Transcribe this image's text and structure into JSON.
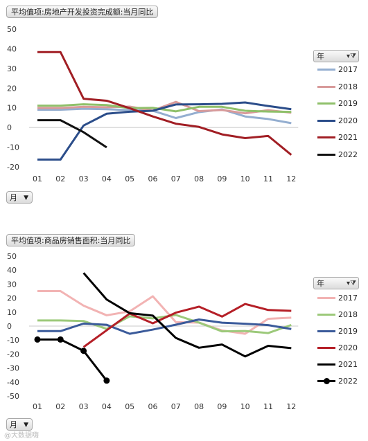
{
  "chart_data": [
    {
      "type": "line",
      "title": "平均值项:房地产开发投资完成额:当月同比",
      "row_field": "月",
      "legend_title": "年",
      "categories": [
        "01",
        "02",
        "03",
        "04",
        "05",
        "06",
        "07",
        "08",
        "09",
        "10",
        "11",
        "12"
      ],
      "yticks": [
        "50",
        "40",
        "30",
        "20",
        "10",
        "0",
        "-10",
        "-20"
      ],
      "ylim": [
        -20,
        50
      ],
      "grid": false,
      "legend_position": "right",
      "series": [
        {
          "name": "2017",
          "color": "#94aed0",
          "marker": false,
          "values": [
            9,
            9,
            9.5,
            9.3,
            8.8,
            8.5,
            4.8,
            7.8,
            9.2,
            5.6,
            4.3,
            2.2
          ]
        },
        {
          "name": "2018",
          "color": "#d89a9a",
          "marker": false,
          "values": [
            9.9,
            9.9,
            10.5,
            10.3,
            10.6,
            8.6,
            13,
            8.3,
            8.9,
            7.2,
            8.8,
            7.5
          ]
        },
        {
          "name": "2019",
          "color": "#8fc06a",
          "marker": false,
          "values": [
            11.1,
            11.1,
            11.8,
            11.4,
            9.8,
            10,
            8.2,
            10.5,
            10.5,
            8.5,
            8.1,
            7.9
          ]
        },
        {
          "name": "2020",
          "color": "#2b4d8a",
          "marker": false,
          "values": [
            -16.3,
            -16.3,
            1,
            7,
            8,
            8.5,
            11.7,
            11.8,
            12,
            12.7,
            10.9,
            9.3
          ]
        },
        {
          "name": "2021",
          "color": "#a11e24",
          "marker": false,
          "values": [
            38.3,
            38.3,
            14.6,
            13.6,
            9.8,
            5.6,
            1.9,
            0.3,
            -3.5,
            -5.4,
            -4.3,
            -13.9
          ]
        },
        {
          "name": "2022",
          "color": "#111111",
          "marker": false,
          "values": [
            3.7,
            3.7,
            -2.4,
            -10.1,
            null,
            null,
            null,
            null,
            null,
            null,
            null,
            null
          ]
        }
      ]
    },
    {
      "type": "line",
      "title": "平均值项:商品房销售面积:当月同比",
      "row_field": "月",
      "legend_title": "年",
      "categories": [
        "01",
        "02",
        "03",
        "04",
        "05",
        "06",
        "07",
        "08",
        "09",
        "10",
        "11",
        "12"
      ],
      "yticks": [
        "50",
        "40",
        "30",
        "20",
        "10",
        "0",
        "-10",
        "-20",
        "-30",
        "-40",
        "-50"
      ],
      "ylim": [
        -50,
        50
      ],
      "grid": false,
      "legend_position": "right",
      "series": [
        {
          "name": "2017",
          "color": "#f2b3b3",
          "marker": false,
          "values": [
            25,
            25,
            14.6,
            7.7,
            10.5,
            21.3,
            2.8,
            2.5,
            -3.1,
            -5.5,
            5.2,
            6
          ]
        },
        {
          "name": "2018",
          "color": "#9cc97a",
          "marker": false,
          "values": [
            4,
            4,
            3.6,
            -2,
            7,
            5.5,
            7.9,
            2.5,
            -3.8,
            -3.5,
            -5,
            0.8
          ]
        },
        {
          "name": "2019",
          "color": "#3a5a9a",
          "marker": false,
          "values": [
            -3.6,
            -3.6,
            1.8,
            0.9,
            -5.5,
            -2.5,
            1,
            4.7,
            2.4,
            1.7,
            0.7,
            -2.1
          ]
        },
        {
          "name": "2020",
          "color": "#b51f27",
          "marker": false,
          "values": [
            null,
            null,
            -15,
            -3,
            9,
            2,
            9.6,
            13.9,
            6.8,
            15.8,
            11.5,
            10.9
          ]
        },
        {
          "name": "2021",
          "color": "#000000",
          "marker": false,
          "values": [
            null,
            null,
            38,
            19,
            9.2,
            7.5,
            -8.5,
            -15.5,
            -13.2,
            -21.7,
            -14.1,
            -15.8
          ]
        },
        {
          "name": "2022",
          "color": "#000000",
          "marker": true,
          "values": [
            -9.6,
            -9.6,
            -17.7,
            -39,
            null,
            null,
            null,
            null,
            null,
            null,
            null,
            null
          ]
        }
      ]
    }
  ],
  "watermark": "@大数据嗨"
}
